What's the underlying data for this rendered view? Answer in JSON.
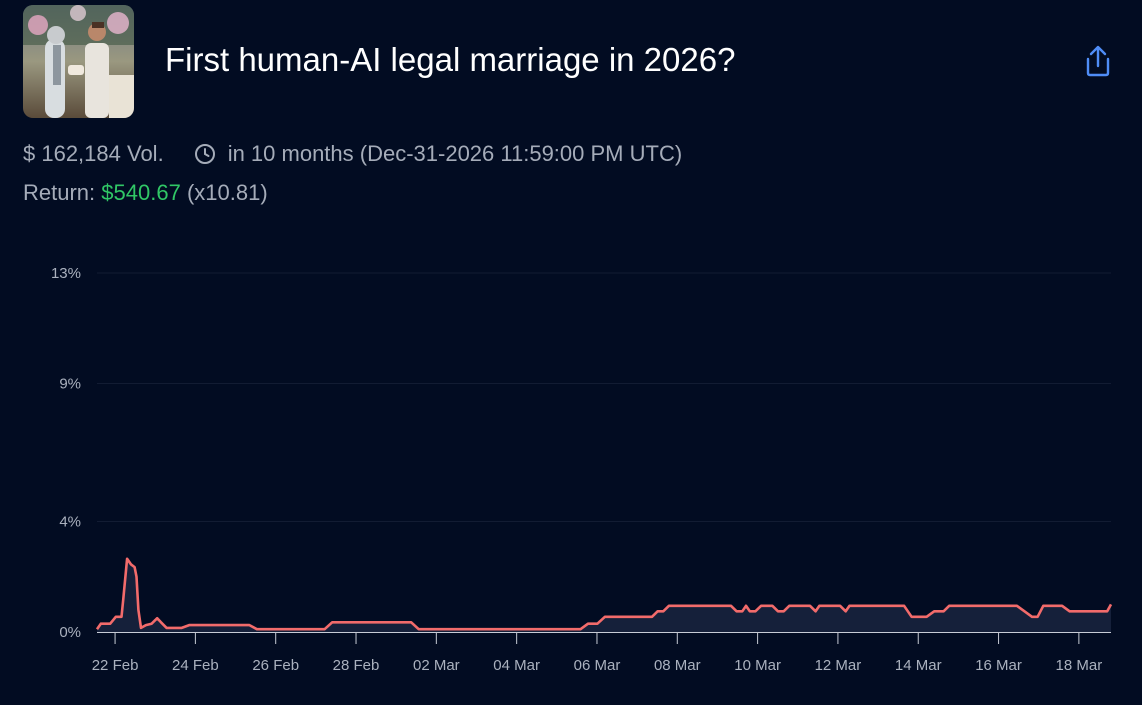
{
  "market": {
    "title": "First human-AI legal marriage in 2026?",
    "thumbnail_icon": "wedding-photo-icon",
    "share_icon": "share-icon"
  },
  "stats": {
    "volume": "$ 162,184 Vol.",
    "clock_icon": "clock-icon",
    "closes": "in 10 months (Dec-31-2026 11:59:00 PM UTC)",
    "return_label": "Return:",
    "return_value": "$540.67",
    "return_multiplier": "(x10.81)"
  },
  "colors": {
    "background": "#020c22",
    "line": "#f26b6b",
    "return_green": "#30c766",
    "share_blue": "#4f8df7"
  },
  "chart_data": {
    "type": "line",
    "x_ticks": [
      "22 Feb",
      "24 Feb",
      "26 Feb",
      "28 Feb",
      "02 Mar",
      "04 Mar",
      "06 Mar",
      "08 Mar",
      "10 Mar",
      "12 Mar",
      "14 Mar",
      "16 Mar",
      "18 Mar"
    ],
    "y_ticks": [
      "0%",
      "4%",
      "9%",
      "13%"
    ],
    "xlim_days_from_22_feb": [
      -0.45,
      24.8
    ],
    "ylim_percent": [
      0,
      13
    ],
    "grid": true,
    "series": [
      {
        "values": [
          [
            -0.45,
            0.1
          ],
          [
            -0.35,
            0.3
          ],
          [
            -0.1,
            0.3
          ],
          [
            0.05,
            0.55
          ],
          [
            0.2,
            0.55
          ],
          [
            0.25,
            1.2
          ],
          [
            0.35,
            2.65
          ],
          [
            0.45,
            2.45
          ],
          [
            0.55,
            2.35
          ],
          [
            0.6,
            2.0
          ],
          [
            0.65,
            0.8
          ],
          [
            0.72,
            0.15
          ],
          [
            0.85,
            0.25
          ],
          [
            1.0,
            0.3
          ],
          [
            1.15,
            0.5
          ],
          [
            1.25,
            0.35
          ],
          [
            1.4,
            0.15
          ],
          [
            1.8,
            0.15
          ],
          [
            2.0,
            0.25
          ],
          [
            3.6,
            0.25
          ],
          [
            3.8,
            0.1
          ],
          [
            5.6,
            0.1
          ],
          [
            5.8,
            0.35
          ],
          [
            7.9,
            0.35
          ],
          [
            8.1,
            0.1
          ],
          [
            12.4,
            0.1
          ],
          [
            12.6,
            0.3
          ],
          [
            12.85,
            0.3
          ],
          [
            13.05,
            0.55
          ],
          [
            14.3,
            0.55
          ],
          [
            14.45,
            0.75
          ],
          [
            14.6,
            0.75
          ],
          [
            14.75,
            0.95
          ],
          [
            16.4,
            0.95
          ],
          [
            16.55,
            0.75
          ],
          [
            16.7,
            0.75
          ],
          [
            16.8,
            0.95
          ],
          [
            16.9,
            0.75
          ],
          [
            17.05,
            0.75
          ],
          [
            17.2,
            0.95
          ],
          [
            17.5,
            0.95
          ],
          [
            17.65,
            0.75
          ],
          [
            17.8,
            0.75
          ],
          [
            17.95,
            0.95
          ],
          [
            18.5,
            0.95
          ],
          [
            18.65,
            0.75
          ],
          [
            18.75,
            0.95
          ],
          [
            19.3,
            0.95
          ],
          [
            19.45,
            0.75
          ],
          [
            19.55,
            0.95
          ],
          [
            21.0,
            0.95
          ],
          [
            21.2,
            0.55
          ],
          [
            21.6,
            0.55
          ],
          [
            21.8,
            0.75
          ],
          [
            22.05,
            0.75
          ],
          [
            22.2,
            0.95
          ],
          [
            24.0,
            0.95
          ],
          [
            24.2,
            0.75
          ],
          [
            24.4,
            0.55
          ],
          [
            24.55,
            0.55
          ],
          [
            24.7,
            0.95
          ],
          [
            25.2,
            0.95
          ],
          [
            25.4,
            0.75
          ],
          [
            25.75,
            0.75
          ],
          [
            26.4,
            0.75
          ],
          [
            26.5,
            1.0
          ]
        ]
      }
    ]
  }
}
